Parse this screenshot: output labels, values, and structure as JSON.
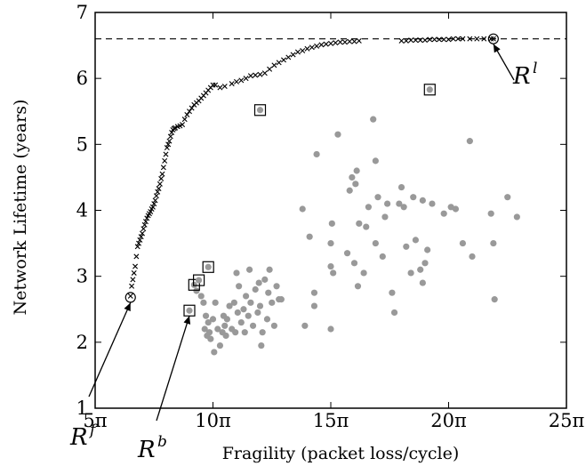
{
  "chart_data": {
    "type": "scatter",
    "title": "",
    "xlabel": "Fragility (packet loss/cycle)",
    "ylabel": "Network Lifetime (years)",
    "xlim": [
      5,
      25
    ],
    "ylim": [
      1,
      7
    ],
    "x_tick_values": [
      5,
      10,
      15,
      20,
      25
    ],
    "x_tick_labels": [
      "5π",
      "10π",
      "15π",
      "20π",
      "25π"
    ],
    "y_tick_values": [
      1,
      2,
      3,
      4,
      5,
      6,
      7
    ],
    "y_tick_labels": [
      "1",
      "2",
      "3",
      "4",
      "5",
      "6",
      "7"
    ],
    "grid": false,
    "reference_line": {
      "y": 6.6,
      "style": "dashed"
    },
    "series": [
      {
        "marker": "x",
        "color": "#000000",
        "points": [
          [
            6.5,
            2.7
          ],
          [
            6.55,
            2.85
          ],
          [
            6.6,
            2.95
          ],
          [
            6.65,
            3.05
          ],
          [
            6.7,
            3.15
          ],
          [
            6.75,
            3.3
          ],
          [
            6.8,
            3.45
          ],
          [
            6.85,
            3.5
          ],
          [
            6.9,
            3.55
          ],
          [
            6.95,
            3.6
          ],
          [
            7.0,
            3.65
          ],
          [
            7.05,
            3.72
          ],
          [
            7.1,
            3.78
          ],
          [
            7.15,
            3.83
          ],
          [
            7.2,
            3.88
          ],
          [
            7.25,
            3.92
          ],
          [
            7.3,
            3.95
          ],
          [
            7.35,
            3.98
          ],
          [
            7.4,
            4.02
          ],
          [
            7.45,
            4.05
          ],
          [
            7.5,
            4.1
          ],
          [
            7.55,
            4.15
          ],
          [
            7.6,
            4.22
          ],
          [
            7.65,
            4.28
          ],
          [
            7.7,
            4.33
          ],
          [
            7.75,
            4.4
          ],
          [
            7.8,
            4.48
          ],
          [
            7.85,
            4.55
          ],
          [
            7.9,
            4.65
          ],
          [
            7.95,
            4.75
          ],
          [
            8.0,
            4.85
          ],
          [
            8.05,
            4.95
          ],
          [
            8.1,
            5.0
          ],
          [
            8.15,
            5.05
          ],
          [
            8.2,
            5.12
          ],
          [
            8.25,
            5.18
          ],
          [
            8.3,
            5.22
          ],
          [
            8.35,
            5.24
          ],
          [
            8.4,
            5.25
          ],
          [
            8.5,
            5.27
          ],
          [
            8.6,
            5.28
          ],
          [
            8.7,
            5.3
          ],
          [
            8.8,
            5.38
          ],
          [
            8.9,
            5.45
          ],
          [
            9.0,
            5.5
          ],
          [
            9.1,
            5.55
          ],
          [
            9.2,
            5.6
          ],
          [
            9.3,
            5.63
          ],
          [
            9.4,
            5.66
          ],
          [
            9.5,
            5.7
          ],
          [
            9.6,
            5.74
          ],
          [
            9.7,
            5.78
          ],
          [
            9.8,
            5.82
          ],
          [
            9.9,
            5.86
          ],
          [
            10.0,
            5.9
          ],
          [
            10.1,
            5.9
          ],
          [
            10.3,
            5.86
          ],
          [
            10.5,
            5.88
          ],
          [
            10.8,
            5.92
          ],
          [
            11.0,
            5.95
          ],
          [
            11.2,
            5.97
          ],
          [
            11.4,
            6.0
          ],
          [
            11.6,
            6.04
          ],
          [
            11.8,
            6.05
          ],
          [
            12.0,
            6.06
          ],
          [
            12.2,
            6.08
          ],
          [
            12.4,
            6.14
          ],
          [
            12.6,
            6.2
          ],
          [
            12.8,
            6.24
          ],
          [
            13.0,
            6.28
          ],
          [
            13.2,
            6.32
          ],
          [
            13.4,
            6.36
          ],
          [
            13.6,
            6.4
          ],
          [
            13.8,
            6.42
          ],
          [
            14.0,
            6.45
          ],
          [
            14.2,
            6.47
          ],
          [
            14.4,
            6.49
          ],
          [
            14.6,
            6.51
          ],
          [
            14.8,
            6.52
          ],
          [
            15.0,
            6.53
          ],
          [
            15.2,
            6.54
          ],
          [
            15.4,
            6.55
          ],
          [
            15.6,
            6.55
          ],
          [
            15.8,
            6.56
          ],
          [
            16.0,
            6.56
          ],
          [
            16.2,
            6.57
          ],
          [
            18.0,
            6.57
          ],
          [
            18.2,
            6.57
          ],
          [
            18.4,
            6.58
          ],
          [
            18.6,
            6.58
          ],
          [
            18.8,
            6.58
          ],
          [
            19.0,
            6.58
          ],
          [
            19.2,
            6.59
          ],
          [
            19.4,
            6.59
          ],
          [
            19.6,
            6.59
          ],
          [
            19.8,
            6.59
          ],
          [
            20.0,
            6.59
          ],
          [
            20.2,
            6.6
          ],
          [
            20.4,
            6.6
          ],
          [
            20.6,
            6.6
          ],
          [
            20.9,
            6.6
          ],
          [
            21.2,
            6.6
          ],
          [
            21.5,
            6.6
          ],
          [
            21.8,
            6.6
          ],
          [
            21.9,
            6.6
          ]
        ]
      },
      {
        "marker": "o",
        "color": "#999999",
        "points": [
          [
            9.3,
            2.78
          ],
          [
            9.5,
            2.7
          ],
          [
            9.6,
            2.6
          ],
          [
            9.65,
            2.2
          ],
          [
            9.7,
            2.4
          ],
          [
            9.75,
            2.1
          ],
          [
            9.8,
            2.3
          ],
          [
            9.85,
            2.15
          ],
          [
            9.9,
            2.05
          ],
          [
            10.0,
            2.35
          ],
          [
            10.05,
            1.85
          ],
          [
            10.1,
            2.6
          ],
          [
            10.2,
            2.2
          ],
          [
            10.3,
            1.95
          ],
          [
            10.4,
            2.15
          ],
          [
            10.45,
            2.4
          ],
          [
            10.5,
            2.25
          ],
          [
            10.55,
            2.1
          ],
          [
            10.6,
            2.35
          ],
          [
            10.7,
            2.55
          ],
          [
            10.8,
            2.2
          ],
          [
            10.9,
            2.6
          ],
          [
            10.95,
            2.15
          ],
          [
            11.0,
            3.05
          ],
          [
            11.05,
            2.45
          ],
          [
            11.1,
            2.85
          ],
          [
            11.2,
            2.3
          ],
          [
            11.3,
            2.5
          ],
          [
            11.35,
            2.15
          ],
          [
            11.4,
            2.7
          ],
          [
            11.5,
            2.4
          ],
          [
            11.55,
            3.1
          ],
          [
            11.6,
            2.6
          ],
          [
            11.7,
            2.25
          ],
          [
            11.8,
            2.8
          ],
          [
            11.9,
            2.45
          ],
          [
            11.95,
            2.9
          ],
          [
            12.0,
            2.55
          ],
          [
            12.05,
            1.95
          ],
          [
            12.1,
            2.15
          ],
          [
            12.2,
            2.95
          ],
          [
            12.3,
            2.35
          ],
          [
            12.35,
            2.75
          ],
          [
            12.4,
            3.1
          ],
          [
            12.5,
            2.6
          ],
          [
            12.6,
            2.25
          ],
          [
            12.7,
            2.85
          ],
          [
            12.8,
            2.65
          ],
          [
            12.9,
            2.65
          ],
          [
            13.8,
            4.02
          ],
          [
            13.9,
            2.25
          ],
          [
            14.1,
            3.6
          ],
          [
            14.3,
            2.55
          ],
          [
            14.3,
            2.75
          ],
          [
            14.4,
            4.85
          ],
          [
            15.0,
            2.2
          ],
          [
            15.0,
            3.15
          ],
          [
            15.0,
            3.5
          ],
          [
            15.05,
            3.8
          ],
          [
            15.1,
            3.05
          ],
          [
            15.3,
            5.15
          ],
          [
            15.7,
            3.35
          ],
          [
            15.8,
            4.3
          ],
          [
            15.9,
            4.5
          ],
          [
            16.0,
            3.2
          ],
          [
            16.05,
            4.4
          ],
          [
            16.1,
            4.6
          ],
          [
            16.15,
            2.85
          ],
          [
            16.2,
            3.8
          ],
          [
            16.4,
            3.05
          ],
          [
            16.5,
            3.75
          ],
          [
            16.6,
            4.05
          ],
          [
            16.8,
            5.38
          ],
          [
            16.9,
            4.75
          ],
          [
            16.9,
            3.5
          ],
          [
            17.0,
            4.2
          ],
          [
            17.2,
            3.3
          ],
          [
            17.3,
            3.9
          ],
          [
            17.4,
            4.1
          ],
          [
            17.6,
            2.75
          ],
          [
            17.7,
            2.45
          ],
          [
            17.9,
            4.1
          ],
          [
            18.0,
            4.35
          ],
          [
            18.1,
            4.05
          ],
          [
            18.2,
            3.45
          ],
          [
            18.4,
            3.05
          ],
          [
            18.5,
            4.2
          ],
          [
            18.6,
            3.55
          ],
          [
            18.8,
            3.1
          ],
          [
            18.9,
            2.9
          ],
          [
            18.9,
            4.15
          ],
          [
            19.0,
            3.2
          ],
          [
            19.1,
            3.4
          ],
          [
            19.3,
            4.1
          ],
          [
            19.8,
            3.95
          ],
          [
            20.1,
            4.05
          ],
          [
            20.3,
            4.02
          ],
          [
            20.6,
            3.5
          ],
          [
            20.9,
            5.05
          ],
          [
            21.0,
            3.3
          ],
          [
            21.8,
            3.95
          ],
          [
            21.9,
            3.5
          ],
          [
            21.95,
            2.65
          ],
          [
            22.5,
            4.2
          ],
          [
            22.9,
            3.9
          ]
        ]
      }
    ],
    "highlighted_points": [
      {
        "x": 9.0,
        "y": 2.48
      },
      {
        "x": 9.2,
        "y": 2.87
      },
      {
        "x": 9.4,
        "y": 2.94
      },
      {
        "x": 9.8,
        "y": 3.14
      },
      {
        "x": 12.0,
        "y": 5.52
      },
      {
        "x": 19.2,
        "y": 5.83
      }
    ],
    "circled_points": [
      {
        "x": 6.5,
        "y": 2.68
      },
      {
        "x": 21.9,
        "y": 6.6
      }
    ],
    "annotations": [
      {
        "base": "R",
        "sup": "f",
        "arrow_to": {
          "x": 6.5,
          "y": 2.6
        }
      },
      {
        "base": "R",
        "sup": "b",
        "arrow_to": {
          "x": 9.0,
          "y": 2.4
        }
      },
      {
        "base": "R",
        "sup": "l",
        "arrow_to": {
          "x": 21.9,
          "y": 6.52
        }
      }
    ]
  }
}
